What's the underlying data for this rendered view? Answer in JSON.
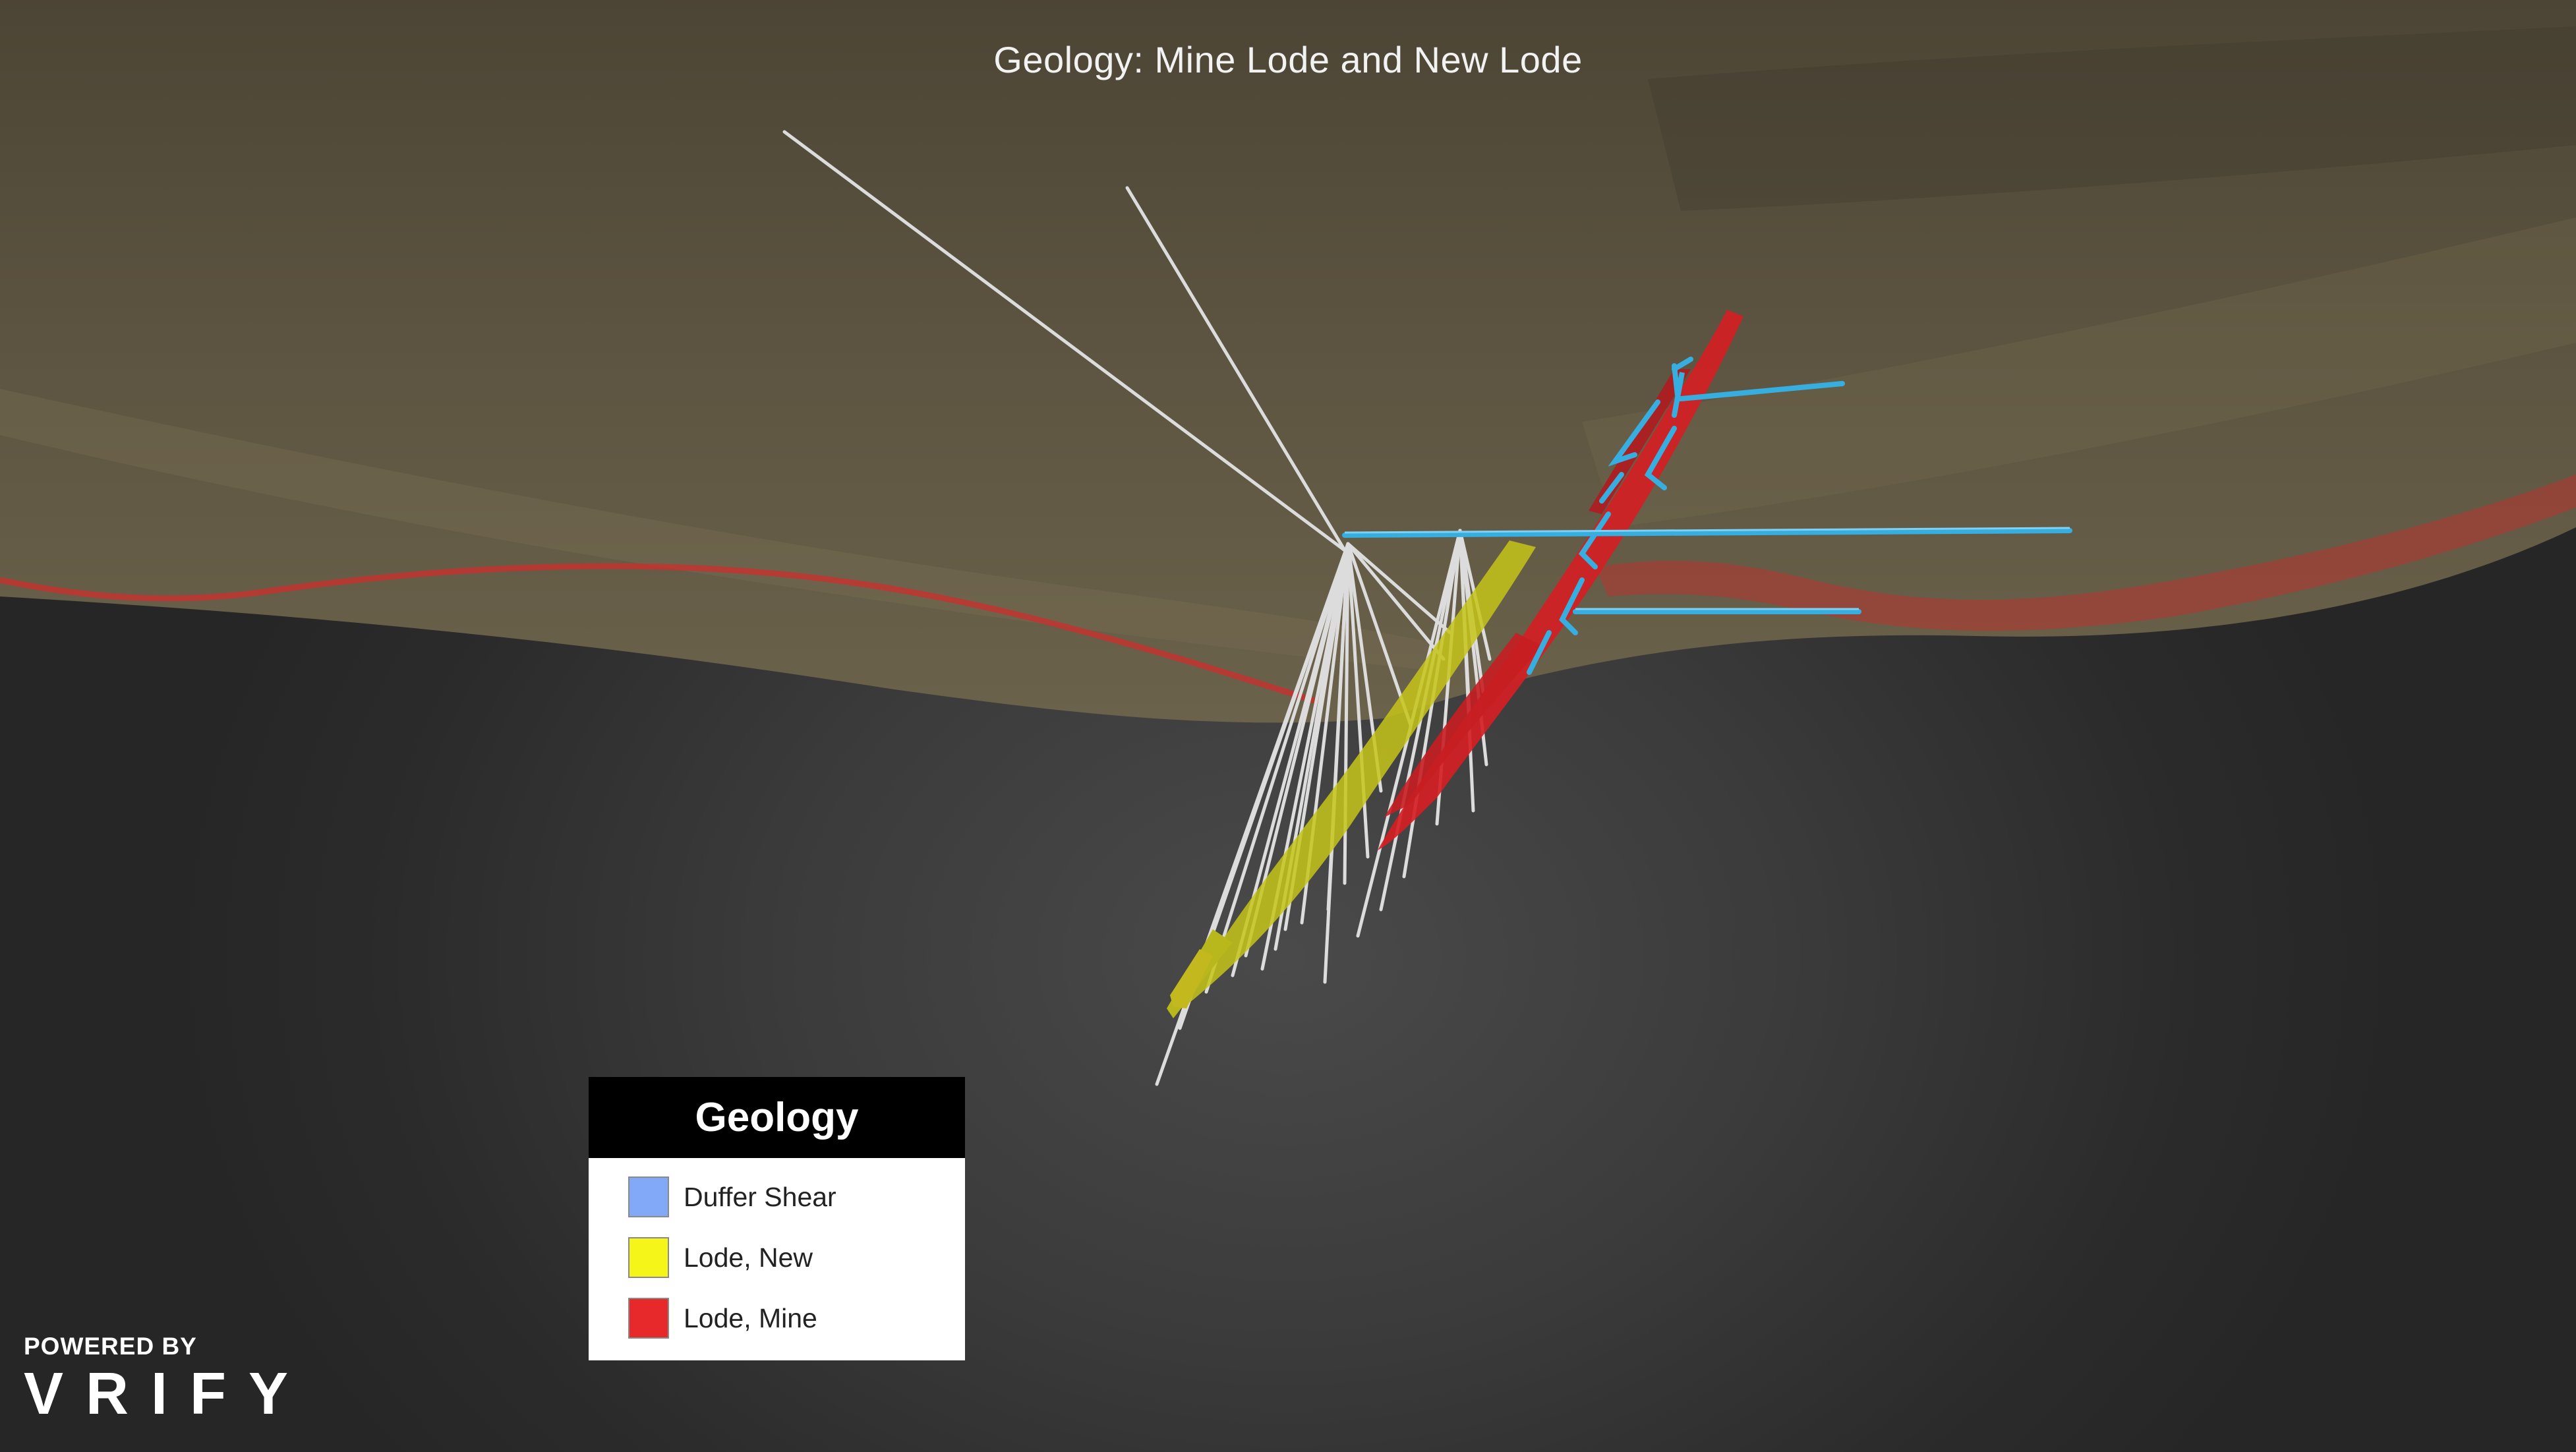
{
  "view": {
    "title": "Geology: Mine Lode and New Lode"
  },
  "legend": {
    "title": "Geology",
    "items": [
      {
        "label": "Duffer Shear",
        "color": "#82a9f7"
      },
      {
        "label": "Lode, New",
        "color": "#f5f519"
      },
      {
        "label": "Lode, Mine",
        "color": "#e8292b"
      }
    ]
  },
  "brand": {
    "powered_by": "POWERED BY",
    "logo_text": "VRIFY"
  },
  "colors": {
    "terrain": "#6a6049",
    "drillhole": "#dcdcdc",
    "workings": "#36aee0",
    "lode_new": "#c8c81e",
    "lode_mine": "#d42024"
  }
}
